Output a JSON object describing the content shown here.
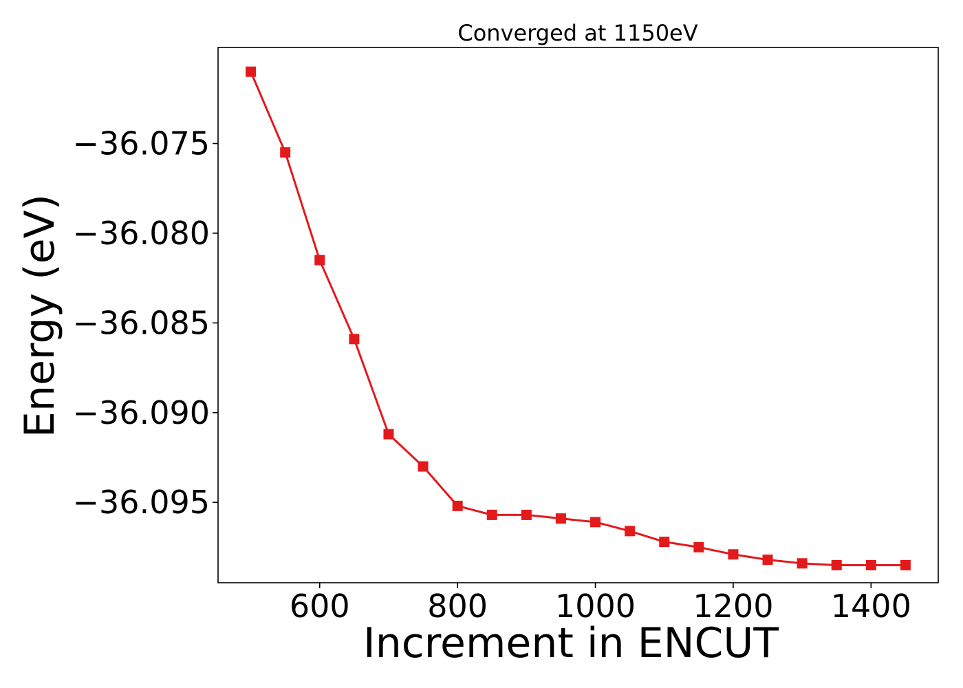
{
  "chart_data": {
    "type": "line",
    "title": "Converged at 1150eV",
    "xlabel": "Increment in ENCUT",
    "ylabel": "Energy (eV)",
    "xlim": [
      452.5,
      1497.5
    ],
    "ylim": [
      -36.09948,
      -36.06965
    ],
    "x_ticks": [
      600,
      800,
      1000,
      1200,
      1400
    ],
    "x_tick_labels": [
      "600",
      "800",
      "1000",
      "1200",
      "1400"
    ],
    "y_ticks": [
      -36.075,
      -36.08,
      -36.085,
      -36.09,
      -36.095
    ],
    "y_tick_labels": [
      "−36.075",
      "−36.080",
      "−36.085",
      "−36.090",
      "−36.095"
    ],
    "grid": false,
    "series": [
      {
        "color": "#e31a1c",
        "marker": "square",
        "x": [
          500,
          550,
          600,
          650,
          700,
          750,
          800,
          850,
          900,
          950,
          1000,
          1050,
          1100,
          1150,
          1200,
          1250,
          1300,
          1350,
          1400,
          1450
        ],
        "y": [
          -36.071,
          -36.0755,
          -36.0815,
          -36.0859,
          -36.0912,
          -36.093,
          -36.0952,
          -36.0957,
          -36.0957,
          -36.0959,
          -36.0961,
          -36.0966,
          -36.0972,
          -36.0975,
          -36.0979,
          -36.0982,
          -36.0984,
          -36.0985,
          -36.0985,
          -36.0985
        ]
      }
    ]
  }
}
